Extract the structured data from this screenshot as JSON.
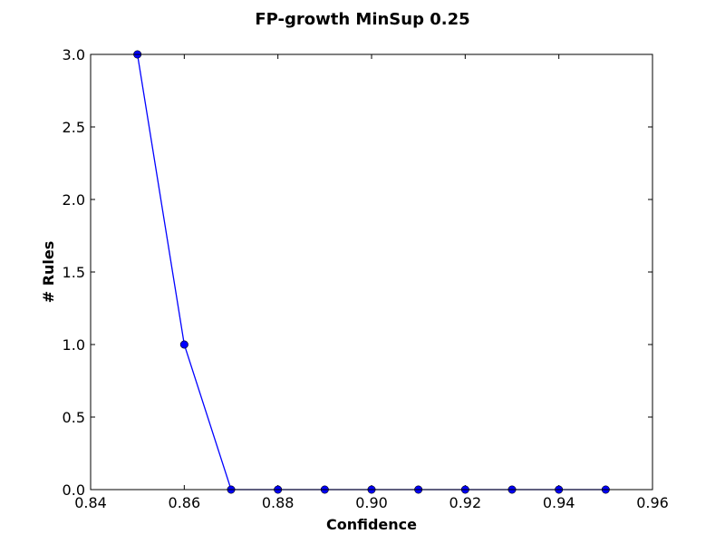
{
  "chart_data": {
    "type": "line",
    "title": "FP-growth MinSup 0.25",
    "xlabel": "Confidence",
    "ylabel": "# Rules",
    "xlim": [
      0.84,
      0.96
    ],
    "ylim": [
      0.0,
      3.0
    ],
    "x_ticks": [
      0.84,
      0.86,
      0.88,
      0.9,
      0.92,
      0.94,
      0.96
    ],
    "x_tick_labels": [
      "0.84",
      "0.86",
      "0.88",
      "0.90",
      "0.92",
      "0.94",
      "0.96"
    ],
    "y_ticks": [
      0.0,
      0.5,
      1.0,
      1.5,
      2.0,
      2.5,
      3.0
    ],
    "y_tick_labels": [
      "0.0",
      "0.5",
      "1.0",
      "1.5",
      "2.0",
      "2.5",
      "3.0"
    ],
    "grid": false,
    "legend": "none",
    "line_color": "#0000ff",
    "series": [
      {
        "x": [
          0.85,
          0.86,
          0.87,
          0.88,
          0.89,
          0.9,
          0.91,
          0.92,
          0.93,
          0.94,
          0.95
        ],
        "y": [
          3,
          1,
          0,
          0,
          0,
          0,
          0,
          0,
          0,
          0,
          0
        ]
      }
    ]
  }
}
